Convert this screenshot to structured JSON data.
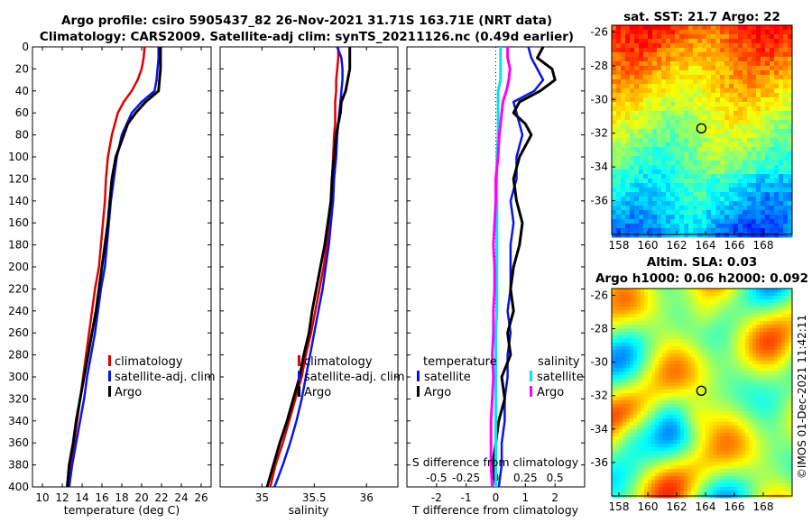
{
  "header": {
    "line1": "Argo profile: csiro 5905437_82 26-Nov-2021 31.71S 163.71E (NRT data)",
    "line2": "Climatology: CARS2009. Satellite-adj clim: synTS_20211126.nc (0.49d earlier)"
  },
  "colors": {
    "climatology": "#e00000",
    "satellite": "#0a14e6",
    "argo": "#000000",
    "salinity_satellite": "#00e5ee",
    "salinity_argo": "#ff00ff"
  },
  "chart_data": [
    {
      "type": "line",
      "id": "temperature-profile",
      "xlabel": "temperature (deg C)",
      "ylabel": "",
      "xlim": [
        9,
        27
      ],
      "ylim": [
        400,
        0
      ],
      "xticks": [
        10,
        12,
        14,
        16,
        18,
        20,
        22,
        24,
        26
      ],
      "yticks": [
        0,
        20,
        40,
        60,
        80,
        100,
        120,
        140,
        160,
        180,
        200,
        220,
        240,
        260,
        280,
        300,
        320,
        340,
        360,
        380,
        400
      ],
      "depth": [
        0,
        10,
        20,
        30,
        40,
        50,
        60,
        70,
        80,
        100,
        120,
        140,
        160,
        180,
        200,
        220,
        240,
        260,
        280,
        300,
        320,
        340,
        360,
        380,
        400
      ],
      "legend": [
        "climatology",
        "satellite-adj. clim",
        "Argo"
      ],
      "series": [
        {
          "name": "climatology",
          "values": [
            20.3,
            20.2,
            20.0,
            19.6,
            19.0,
            18.2,
            17.6,
            17.3,
            17.0,
            16.6,
            16.4,
            16.3,
            16.1,
            15.9,
            15.7,
            15.3,
            15.0,
            14.7,
            14.4,
            14.1,
            13.8,
            13.5,
            13.2,
            12.9,
            12.6
          ]
        },
        {
          "name": "satellite-adj. clim",
          "values": [
            21.7,
            21.7,
            21.6,
            21.5,
            21.3,
            20.0,
            19.0,
            18.5,
            18.0,
            17.5,
            17.2,
            16.9,
            16.7,
            16.5,
            16.3,
            15.9,
            15.6,
            15.3,
            14.9,
            14.5,
            14.2,
            13.8,
            13.4,
            13.0,
            12.7
          ]
        },
        {
          "name": "Argo",
          "values": [
            21.9,
            21.9,
            21.9,
            21.8,
            21.7,
            20.4,
            19.4,
            18.6,
            18.2,
            17.4,
            17.0,
            16.8,
            16.6,
            16.3,
            16.0,
            15.7,
            15.4,
            15.0,
            14.6,
            14.2,
            13.8,
            13.4,
            13.1,
            12.7,
            12.5
          ]
        }
      ]
    },
    {
      "type": "line",
      "id": "salinity-profile",
      "xlabel": "salinity",
      "xlim": [
        34.6,
        36.3
      ],
      "ylim": [
        400,
        0
      ],
      "xticks": [
        35,
        35.5,
        36
      ],
      "depth": [
        0,
        10,
        20,
        30,
        40,
        50,
        60,
        70,
        80,
        100,
        120,
        140,
        160,
        180,
        200,
        220,
        240,
        260,
        280,
        300,
        320,
        340,
        360,
        380,
        400
      ],
      "legend": [
        "climatology",
        "satellite-adj. clim",
        "Argo"
      ],
      "series": [
        {
          "name": "climatology",
          "values": [
            35.73,
            35.73,
            35.72,
            35.71,
            35.71,
            35.7,
            35.7,
            35.7,
            35.69,
            35.68,
            35.67,
            35.66,
            35.64,
            35.62,
            35.59,
            35.55,
            35.51,
            35.47,
            35.42,
            35.38,
            35.32,
            35.26,
            35.2,
            35.13,
            35.08
          ]
        },
        {
          "name": "satellite-adj. clim",
          "values": [
            35.72,
            35.76,
            35.77,
            35.77,
            35.76,
            35.75,
            35.74,
            35.73,
            35.72,
            35.71,
            35.69,
            35.68,
            35.66,
            35.64,
            35.61,
            35.58,
            35.54,
            35.5,
            35.46,
            35.42,
            35.38,
            35.33,
            35.27,
            35.2,
            35.12
          ]
        },
        {
          "name": "Argo",
          "values": [
            35.84,
            35.84,
            35.84,
            35.82,
            35.8,
            35.76,
            35.75,
            35.73,
            35.71,
            35.69,
            35.67,
            35.66,
            35.63,
            35.6,
            35.56,
            35.52,
            35.48,
            35.45,
            35.4,
            35.36,
            35.3,
            35.24,
            35.17,
            35.11,
            35.05
          ]
        }
      ]
    },
    {
      "type": "line",
      "id": "difference-profile",
      "xlabel": "T difference from climatology",
      "top_xlabel": "S difference from climatology",
      "xlim": [
        -3,
        3
      ],
      "ylim": [
        400,
        0
      ],
      "xticks": [
        -2,
        -1,
        0,
        1,
        2
      ],
      "top_xticks": [
        -0.5,
        -0.25,
        0,
        0.25,
        0.5
      ],
      "top_tick_labels": [
        "-0.5",
        "-0.25",
        "0",
        "0.25",
        "0.5"
      ],
      "depth": [
        0,
        10,
        20,
        30,
        40,
        50,
        60,
        70,
        80,
        100,
        120,
        140,
        160,
        180,
        200,
        220,
        240,
        260,
        280,
        300,
        320,
        340,
        360,
        380,
        400
      ],
      "legend_temperature": {
        "title": "temperature",
        "entries": [
          "satellite",
          "Argo"
        ]
      },
      "legend_salinity": {
        "title": "salinity",
        "entries": [
          "satellite",
          "Argo"
        ]
      },
      "series": [
        {
          "name": "temperature satellite",
          "values": [
            1.1,
            1.2,
            1.4,
            1.6,
            1.3,
            0.6,
            0.7,
            0.8,
            0.9,
            0.7,
            0.7,
            0.5,
            0.6,
            0.5,
            0.5,
            0.5,
            0.4,
            0.5,
            0.4,
            0.4,
            0.3,
            0.3,
            0.2,
            0.2,
            0.1
          ]
        },
        {
          "name": "temperature Argo",
          "values": [
            1.6,
            1.4,
            1.9,
            2.0,
            1.5,
            0.8,
            0.6,
            1.0,
            1.2,
            0.8,
            0.6,
            0.7,
            0.9,
            0.8,
            0.6,
            0.5,
            0.6,
            0.4,
            0.5,
            0.2,
            0.3,
            0.1,
            0.0,
            -0.1,
            0.0
          ]
        },
        {
          "name": "salinity satellite",
          "values": [
            0.04,
            0.04,
            0.04,
            0.04,
            0.02,
            0.02,
            0.02,
            0.02,
            0.02,
            0.01,
            0.01,
            0.01,
            0.01,
            0.01,
            0.01,
            0.01,
            0.01,
            0.0,
            0.0,
            0.0,
            0.0,
            0.0,
            0.0,
            0.0,
            0.0
          ]
        },
        {
          "name": "salinity Argo",
          "values": [
            0.1,
            0.1,
            0.12,
            0.11,
            0.09,
            0.06,
            0.05,
            0.04,
            0.03,
            0.02,
            0.0,
            0.0,
            -0.01,
            -0.02,
            -0.01,
            -0.01,
            -0.02,
            -0.02,
            -0.03,
            -0.02,
            -0.03,
            -0.04,
            -0.04,
            -0.04,
            -0.03
          ]
        }
      ]
    },
    {
      "type": "heatmap",
      "id": "sst-map",
      "title": "sat. SST: 21.7 Argo: 22",
      "xlim": [
        157.5,
        170
      ],
      "ylim": [
        -38,
        -25.6
      ],
      "xticks": [
        158,
        160,
        162,
        164,
        166,
        168
      ],
      "yticks": [
        -26,
        -28,
        -30,
        -32,
        -34,
        -36
      ],
      "float_position": {
        "lon": 163.71,
        "lat": -31.71
      },
      "colormap": "jet"
    },
    {
      "type": "heatmap",
      "id": "sla-map",
      "title1": "Altim. SLA: 0.03",
      "title2": "Argo h1000: 0.06 h2000: 0.092",
      "xlim": [
        157.5,
        170
      ],
      "ylim": [
        -38,
        -25.6
      ],
      "xticks": [
        158,
        160,
        162,
        164,
        166,
        168
      ],
      "yticks": [
        -26,
        -28,
        -30,
        -32,
        -34,
        -36
      ],
      "float_position": {
        "lon": 163.71,
        "lat": -31.71
      },
      "colormap": "jet"
    }
  ],
  "footer": {
    "credit": "©IMOS 01-Dec-2021 11:42:11"
  }
}
